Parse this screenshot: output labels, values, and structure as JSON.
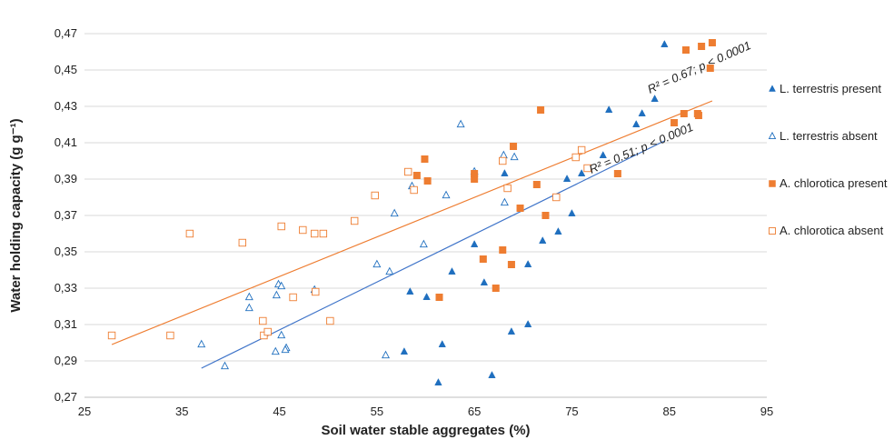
{
  "chart_data": {
    "type": "scatter",
    "xlabel": "Soil water stable aggregates (%)",
    "ylabel": "Water holding capacity (g g⁻¹)",
    "xlim": [
      25,
      95
    ],
    "ylim": [
      0.27,
      0.47
    ],
    "x_ticks": [
      "25",
      "35",
      "45",
      "55",
      "65",
      "75",
      "85",
      "95"
    ],
    "y_ticks": [
      "0,27",
      "0,29",
      "0,31",
      "0,33",
      "0,35",
      "0,37",
      "0,39",
      "0,41",
      "0,43",
      "0,45",
      "0,47"
    ],
    "grid": "horizontal",
    "legend_position": "right",
    "series": [
      {
        "name": "L. terrestris present",
        "marker": "triangle-filled",
        "color": "#1f6fbf",
        "points": [
          [
            84.5,
            0.464
          ],
          [
            83.5,
            0.434
          ],
          [
            82.2,
            0.426
          ],
          [
            81.6,
            0.42
          ],
          [
            78.8,
            0.428
          ],
          [
            78.2,
            0.403
          ],
          [
            76.0,
            0.393
          ],
          [
            75.0,
            0.371
          ],
          [
            74.5,
            0.39
          ],
          [
            73.6,
            0.361
          ],
          [
            72.0,
            0.356
          ],
          [
            70.5,
            0.343
          ],
          [
            70.5,
            0.31
          ],
          [
            68.8,
            0.306
          ],
          [
            68.1,
            0.393
          ],
          [
            66.8,
            0.282
          ],
          [
            66.0,
            0.333
          ],
          [
            65.0,
            0.354
          ],
          [
            62.7,
            0.339
          ],
          [
            61.7,
            0.299
          ],
          [
            61.3,
            0.278
          ],
          [
            60.1,
            0.325
          ],
          [
            58.4,
            0.328
          ],
          [
            57.8,
            0.295
          ]
        ]
      },
      {
        "name": "L. terrestris absent",
        "marker": "triangle-open",
        "color": "#1f6fbf",
        "points": [
          [
            37.0,
            0.299
          ],
          [
            39.4,
            0.287
          ],
          [
            41.9,
            0.325
          ],
          [
            41.9,
            0.319
          ],
          [
            44.7,
            0.326
          ],
          [
            44.6,
            0.295
          ],
          [
            44.9,
            0.332
          ],
          [
            45.2,
            0.331
          ],
          [
            45.2,
            0.304
          ],
          [
            45.7,
            0.297
          ],
          [
            45.6,
            0.296
          ],
          [
            48.6,
            0.329
          ],
          [
            55.0,
            0.343
          ],
          [
            55.9,
            0.293
          ],
          [
            56.3,
            0.339
          ],
          [
            56.8,
            0.371
          ],
          [
            58.6,
            0.386
          ],
          [
            59.8,
            0.354
          ],
          [
            62.1,
            0.381
          ],
          [
            63.6,
            0.42
          ],
          [
            65.0,
            0.394
          ],
          [
            68.0,
            0.403
          ],
          [
            68.1,
            0.377
          ],
          [
            69.1,
            0.402
          ]
        ]
      },
      {
        "name": "A. chlorotica present",
        "marker": "square-filled",
        "color": "#ee7d31",
        "points": [
          [
            89.4,
            0.465
          ],
          [
            88.3,
            0.463
          ],
          [
            86.7,
            0.461
          ],
          [
            89.2,
            0.451
          ],
          [
            86.5,
            0.426
          ],
          [
            87.9,
            0.426
          ],
          [
            88.0,
            0.425
          ],
          [
            85.5,
            0.421
          ],
          [
            79.7,
            0.393
          ],
          [
            71.8,
            0.428
          ],
          [
            71.4,
            0.387
          ],
          [
            72.3,
            0.37
          ],
          [
            69.7,
            0.374
          ],
          [
            69.0,
            0.408
          ],
          [
            68.8,
            0.343
          ],
          [
            67.9,
            0.351
          ],
          [
            67.2,
            0.33
          ],
          [
            65.9,
            0.346
          ],
          [
            65.0,
            0.393
          ],
          [
            65.0,
            0.39
          ],
          [
            61.4,
            0.325
          ],
          [
            60.2,
            0.389
          ],
          [
            59.9,
            0.401
          ],
          [
            59.1,
            0.392
          ]
        ]
      },
      {
        "name": "A. chlorotica absent",
        "marker": "square-open",
        "color": "#ee7d31",
        "points": [
          [
            27.8,
            0.304
          ],
          [
            33.8,
            0.304
          ],
          [
            35.8,
            0.36
          ],
          [
            41.2,
            0.355
          ],
          [
            43.3,
            0.312
          ],
          [
            43.4,
            0.304
          ],
          [
            43.8,
            0.306
          ],
          [
            45.2,
            0.364
          ],
          [
            46.4,
            0.325
          ],
          [
            47.4,
            0.362
          ],
          [
            48.6,
            0.36
          ],
          [
            48.7,
            0.328
          ],
          [
            49.5,
            0.36
          ],
          [
            50.2,
            0.312
          ],
          [
            52.7,
            0.367
          ],
          [
            54.8,
            0.381
          ],
          [
            58.2,
            0.394
          ],
          [
            58.8,
            0.384
          ],
          [
            67.9,
            0.4
          ],
          [
            68.4,
            0.385
          ],
          [
            76.0,
            0.406
          ],
          [
            76.6,
            0.396
          ],
          [
            75.4,
            0.402
          ],
          [
            73.4,
            0.38
          ]
        ]
      }
    ],
    "trendlines": [
      {
        "series": "A. chlorotica",
        "color": "#ee7d31",
        "x": [
          27.8,
          89.4
        ],
        "y": [
          0.299,
          0.433
        ]
      },
      {
        "series": "L. terrestris",
        "color": "#3f74c9",
        "x": [
          37.0,
          84.5
        ],
        "y": [
          0.286,
          0.411
        ]
      }
    ],
    "annotations": [
      {
        "text": "R² = 0.67; p < 0.0001",
        "x": 83.0,
        "y": 0.437,
        "rotate": -24
      },
      {
        "text": "R² = 0.51; p < 0.0001",
        "x": 77.0,
        "y": 0.393,
        "rotate": -23
      }
    ]
  }
}
